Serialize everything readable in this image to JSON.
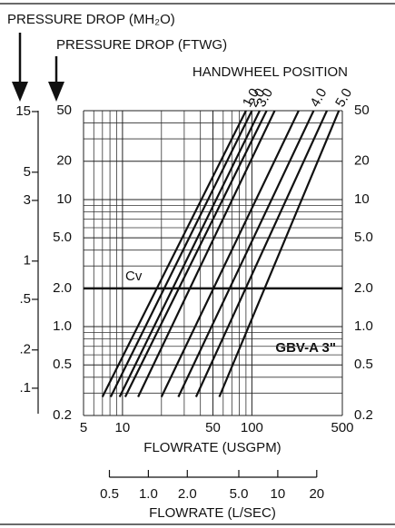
{
  "chart_data": {
    "type": "line",
    "y2_label": "PRESSURE DROP (MH₂O)",
    "y_label": "PRESSURE DROP (FTWG)",
    "legend_title": "HANDWHEEL POSITION",
    "x_label": "FLOWRATE (USGPM)",
    "x2_label": "FLOWRATE (L/SEC)",
    "model_label": "GBV-A 3\"",
    "reference_line": {
      "label": "Cv",
      "value": 2.0
    },
    "xscale": "log",
    "yscale": "log",
    "xlim": [
      5,
      500
    ],
    "xticks": [
      5,
      10,
      50,
      100,
      500
    ],
    "xgrid_minor": [
      6,
      7,
      8,
      9,
      20,
      30,
      40,
      60,
      70,
      80,
      90
    ],
    "ylim": [
      0.2,
      50
    ],
    "yticks": [
      50,
      20,
      10,
      {
        "value": 5,
        "label": "5.0"
      },
      {
        "value": 2,
        "label": "2.0"
      },
      {
        "value": 1,
        "label": "1.0"
      },
      0.5,
      0.2
    ],
    "ygrid_minor": [
      0.3,
      0.4,
      0.6,
      0.7,
      0.8,
      0.9,
      3,
      4,
      6,
      7,
      8,
      9,
      30,
      40
    ],
    "y2lim": [
      0.061,
      15.24
    ],
    "y2ticks": [
      15,
      5,
      3,
      1,
      {
        "value": 0.5,
        "label": ".5"
      },
      {
        "value": 0.2,
        "label": ".2"
      },
      {
        "value": 0.1,
        "label": ".1"
      }
    ],
    "x2lim": [
      0.3155,
      31.55
    ],
    "x2ticks": [
      0.5,
      {
        "value": 1,
        "label": "1.0"
      },
      {
        "value": 2,
        "label": "2.0"
      },
      {
        "value": 5,
        "label": "5.0"
      },
      10,
      20
    ],
    "color": "#111111",
    "series": [
      {
        "name": "1.0",
        "x": [
          7,
          90
        ],
        "values": [
          0.28,
          50
        ]
      },
      {
        "name": "2.0",
        "x": [
          8.1,
          100
        ],
        "values": [
          0.28,
          50
        ]
      },
      {
        "name": "3.0",
        "x": [
          9.5,
          115
        ],
        "values": [
          0.28,
          50
        ]
      },
      {
        "name": null,
        "x": [
          10.5,
          130
        ],
        "values": [
          0.28,
          50
        ]
      },
      {
        "name": null,
        "x": [
          13.2,
          150
        ],
        "values": [
          0.28,
          50
        ]
      },
      {
        "name": null,
        "x": [
          20,
          230
        ],
        "values": [
          0.28,
          50
        ]
      },
      {
        "name": "4.0",
        "x": [
          27,
          300
        ],
        "values": [
          0.28,
          50
        ]
      },
      {
        "name": null,
        "x": [
          37,
          380
        ],
        "values": [
          0.28,
          50
        ]
      },
      {
        "name": "5.0",
        "x": [
          56,
          470
        ],
        "values": [
          0.28,
          50
        ]
      }
    ]
  }
}
